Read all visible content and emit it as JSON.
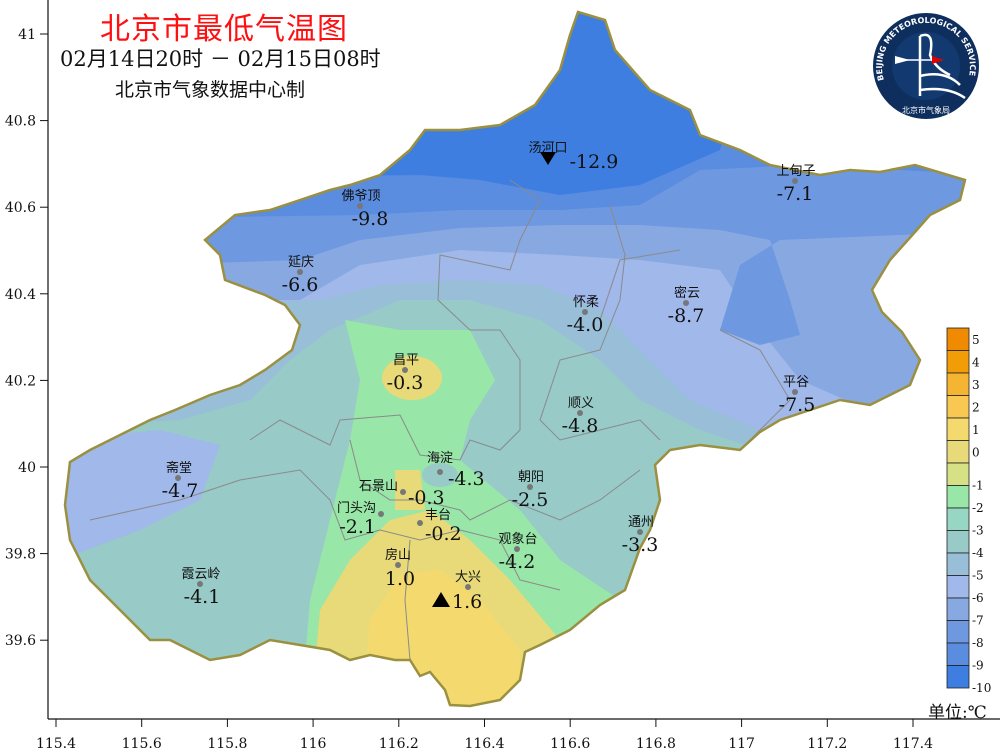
{
  "header": {
    "title": "北京市最低气温图",
    "period": "02月14日20时 － 02月15日08时",
    "source": "北京市气象数据中心制"
  },
  "logo": {
    "text_en": "BEIJING METEOROLOGICAL SERVICE",
    "text_cn": "北京市气象局"
  },
  "axes": {
    "x_ticks": [
      "115.4",
      "115.6",
      "115.8",
      "116",
      "116.2",
      "116.4",
      "116.6",
      "116.8",
      "117",
      "117.2",
      "117.4"
    ],
    "y_ticks": [
      "41",
      "40.8",
      "40.6",
      "40.4",
      "40.2",
      "40",
      "39.8",
      "39.6"
    ]
  },
  "legend": {
    "unit": "单位:℃",
    "labels": [
      "5",
      "4",
      "3",
      "2",
      "1",
      "0",
      "-1",
      "-2",
      "-3",
      "-4",
      "-5",
      "-6",
      "-7",
      "-8",
      "-9",
      "-10"
    ],
    "colors": [
      "#f08a00",
      "#f29c08",
      "#f5b432",
      "#f8c852",
      "#f4da6e",
      "#e8da78",
      "#d6e084",
      "#98e6a8",
      "#96d6c2",
      "#98cac8",
      "#98bed8",
      "#a0b8ea",
      "#88a8e2",
      "#6e98e0",
      "#5a8ce0",
      "#3e7ee0"
    ]
  },
  "markers": {
    "max_station": "大兴",
    "min_station": "汤河口"
  },
  "stations": [
    {
      "name": "汤河口",
      "value": "-12.9"
    },
    {
      "name": "上甸子",
      "value": "-7.1"
    },
    {
      "name": "佛爷顶",
      "value": "-9.8"
    },
    {
      "name": "延庆",
      "value": "-6.6"
    },
    {
      "name": "怀柔",
      "value": "-4.0"
    },
    {
      "name": "密云",
      "value": "-8.7"
    },
    {
      "name": "昌平",
      "value": "-0.3"
    },
    {
      "name": "平谷",
      "value": "-7.5"
    },
    {
      "name": "顺义",
      "value": "-4.8"
    },
    {
      "name": "斋堂",
      "value": "-4.7"
    },
    {
      "name": "海淀",
      "value": "-4.3"
    },
    {
      "name": "朝阳",
      "value": "-2.5"
    },
    {
      "name": "石景山",
      "value": "-0.3"
    },
    {
      "name": "门头沟",
      "value": "-2.1"
    },
    {
      "name": "丰台",
      "value": "-0.2"
    },
    {
      "name": "观象台",
      "value": "-4.2"
    },
    {
      "name": "通州",
      "value": "-3.3"
    },
    {
      "name": "房山",
      "value": "1.0"
    },
    {
      "name": "大兴",
      "value": "1.6"
    },
    {
      "name": "霞云岭",
      "value": "-4.1"
    }
  ]
}
